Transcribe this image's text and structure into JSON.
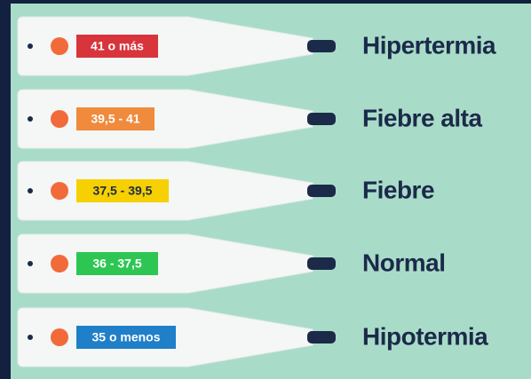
{
  "rows": [
    {
      "range": "41 o más",
      "status": "Hipertermia"
    },
    {
      "range": "39,5 - 41",
      "status": "Fiebre alta"
    },
    {
      "range": "37,5 - 39,5",
      "status": "Fiebre"
    },
    {
      "range": "36 - 37,5",
      "status": "Normal"
    },
    {
      "range": "35 o menos",
      "status": "Hipotermia"
    }
  ]
}
